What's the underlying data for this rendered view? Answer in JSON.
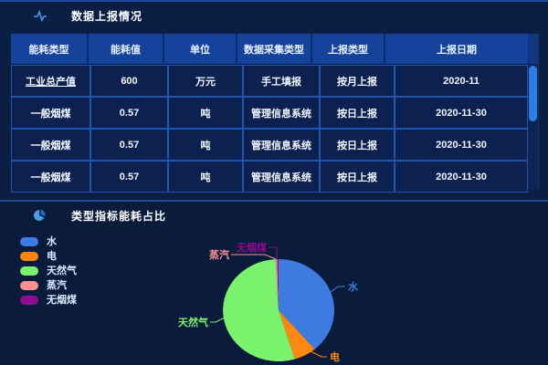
{
  "report_panel": {
    "title": "数据上报情况",
    "table": {
      "columns": [
        "能耗类型",
        "能耗值",
        "单位",
        "数据采集类型",
        "上报类型",
        "上报日期"
      ],
      "rows": [
        [
          "工业总产值",
          "600",
          "万元",
          "手工填报",
          "按月上报",
          "2020-11"
        ],
        [
          "一般烟煤",
          "0.57",
          "吨",
          "管理信息系统",
          "按日上报",
          "2020-11-30"
        ],
        [
          "一般烟煤",
          "0.57",
          "吨",
          "管理信息系统",
          "按日上报",
          "2020-11-30"
        ],
        [
          "一般烟煤",
          "0.57",
          "吨",
          "管理信息系统",
          "按日上报",
          "2020-11-30"
        ]
      ]
    }
  },
  "pie_panel": {
    "title": "类型指标能耗占比"
  },
  "chart_data": {
    "type": "pie",
    "title": "类型指标能耗占比",
    "legend_position": "left",
    "legend": [
      "水",
      "电",
      "天然气",
      "蒸汽",
      "无烟煤"
    ],
    "values_percent": [
      38.8,
      6.5,
      53.8,
      0.5,
      0.4
    ],
    "colors": [
      "#3e7be0",
      "#fd8710",
      "#7bf26d",
      "#fb9090",
      "#8d0d8d"
    ]
  },
  "colors": {
    "page_bg": "#0a1b3c",
    "panel_top_bg": "#0b1f45",
    "header_bg": "#15439c",
    "row_bg": "#0d2150",
    "grid_line": "#2154aa",
    "divider": "#1d4b9a",
    "scroll_thumb": "#2b7de8",
    "title_text": "#ffffff",
    "icon_blue": "#4a9be8"
  }
}
